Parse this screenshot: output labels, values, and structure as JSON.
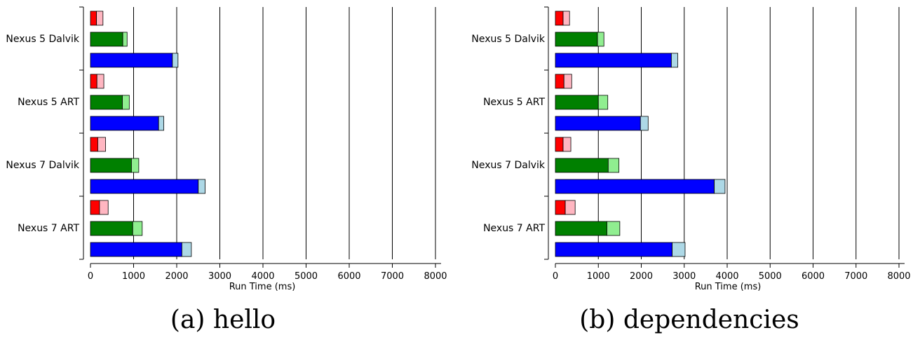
{
  "chart_data": [
    {
      "type": "bar",
      "orientation": "horizontal",
      "stacked": true,
      "caption": "(a) hello",
      "xlabel": "Run Time (ms)",
      "xlim": [
        0,
        8000
      ],
      "xticks": [
        0,
        1000,
        2000,
        3000,
        4000,
        5000,
        6000,
        7000,
        8000
      ],
      "xtick_labels": [
        "0",
        "1000",
        "2000",
        "3000",
        "4000",
        "5000",
        "6000",
        "7000",
        "8000"
      ],
      "grid": "vertical",
      "categories": [
        "Nexus 5 Dalvik",
        "Nexus 5 ART",
        "Nexus 7 Dalvik",
        "Nexus 7 ART"
      ],
      "groups": [
        {
          "category": "Nexus 5 Dalvik",
          "bars": [
            {
              "color": "red",
              "base": 140,
              "extra": 150
            },
            {
              "color": "green",
              "base": 750,
              "extra": 100
            },
            {
              "color": "blue",
              "base": 1900,
              "extra": 130
            }
          ]
        },
        {
          "category": "Nexus 5 ART",
          "bars": [
            {
              "color": "red",
              "base": 150,
              "extra": 160
            },
            {
              "color": "green",
              "base": 740,
              "extra": 160
            },
            {
              "color": "blue",
              "base": 1580,
              "extra": 120
            }
          ]
        },
        {
          "category": "Nexus 7 Dalvik",
          "bars": [
            {
              "color": "red",
              "base": 170,
              "extra": 180
            },
            {
              "color": "green",
              "base": 950,
              "extra": 170
            },
            {
              "color": "blue",
              "base": 2500,
              "extra": 160
            }
          ]
        },
        {
          "category": "Nexus 7 ART",
          "bars": [
            {
              "color": "red",
              "base": 210,
              "extra": 200
            },
            {
              "color": "green",
              "base": 980,
              "extra": 220
            },
            {
              "color": "blue",
              "base": 2120,
              "extra": 220
            }
          ]
        }
      ]
    },
    {
      "type": "bar",
      "orientation": "horizontal",
      "stacked": true,
      "caption": "(b) dependencies",
      "xlabel": "Run Time (ms)",
      "xlim": [
        0,
        8000
      ],
      "xticks": [
        0,
        1000,
        2000,
        3000,
        4000,
        5000,
        6000,
        7000,
        8000
      ],
      "xtick_labels": [
        "0",
        "1000",
        "2000",
        "3000",
        "4000",
        "5000",
        "6000",
        "7000",
        "8000"
      ],
      "grid": "vertical",
      "categories": [
        "Nexus 5 Dalvik",
        "Nexus 5 ART",
        "Nexus 7 Dalvik",
        "Nexus 7 ART"
      ],
      "groups": [
        {
          "category": "Nexus 5 Dalvik",
          "bars": [
            {
              "color": "red",
              "base": 180,
              "extra": 150
            },
            {
              "color": "green",
              "base": 980,
              "extra": 150
            },
            {
              "color": "blue",
              "base": 2700,
              "extra": 150
            }
          ]
        },
        {
          "category": "Nexus 5 ART",
          "bars": [
            {
              "color": "red",
              "base": 200,
              "extra": 180
            },
            {
              "color": "green",
              "base": 1000,
              "extra": 220
            },
            {
              "color": "blue",
              "base": 1980,
              "extra": 180
            }
          ]
        },
        {
          "category": "Nexus 7 Dalvik",
          "bars": [
            {
              "color": "red",
              "base": 180,
              "extra": 180
            },
            {
              "color": "green",
              "base": 1230,
              "extra": 250
            },
            {
              "color": "blue",
              "base": 3700,
              "extra": 250
            }
          ]
        },
        {
          "category": "Nexus 7 ART",
          "bars": [
            {
              "color": "red",
              "base": 230,
              "extra": 230
            },
            {
              "color": "green",
              "base": 1200,
              "extra": 300
            },
            {
              "color": "blue",
              "base": 2720,
              "extra": 300
            }
          ]
        }
      ]
    }
  ],
  "colors": {
    "red": {
      "dark": "#ff0000",
      "light": "#ffb6c1"
    },
    "green": {
      "dark": "#008000",
      "light": "#90ee90"
    },
    "blue": {
      "dark": "#0000ff",
      "light": "#add8e6"
    }
  }
}
